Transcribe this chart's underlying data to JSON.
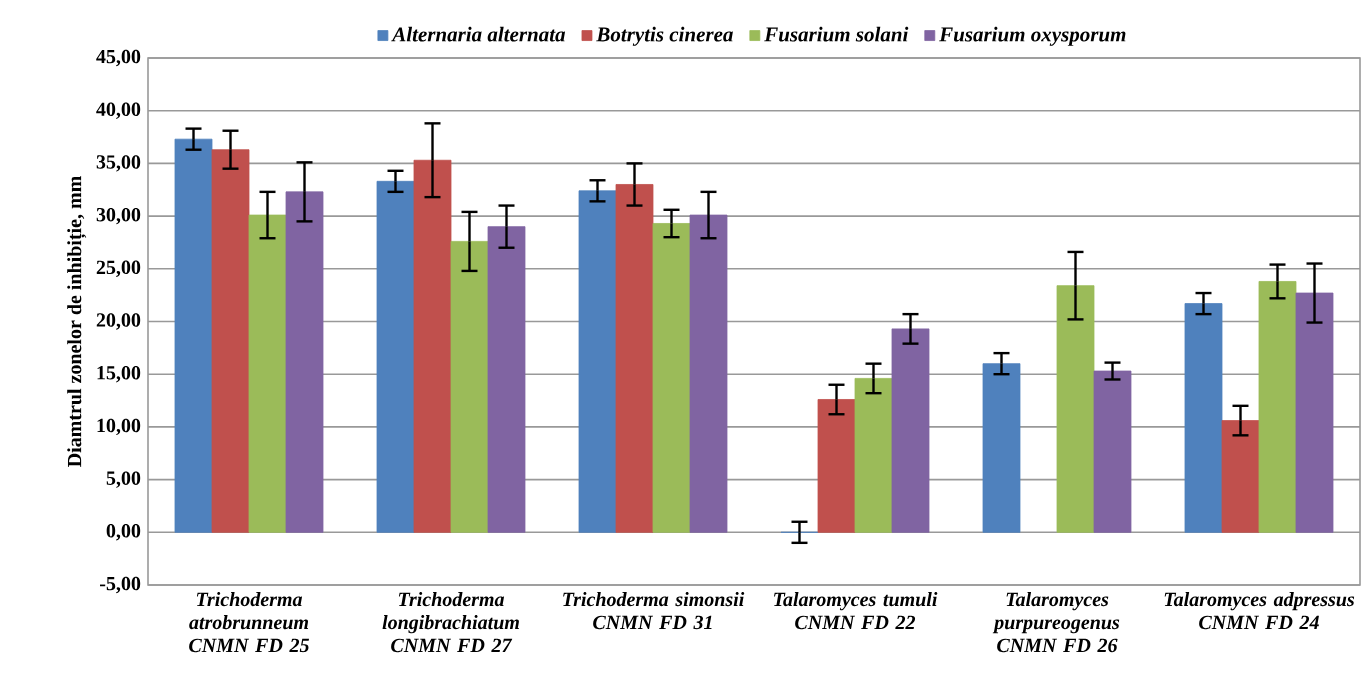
{
  "chart_data": {
    "type": "bar",
    "ylabel": "Diamtrul zonelor de inhibiție, mm",
    "categories": [
      "Trichoderma atrobrunneum CNMN FD 25",
      "Trichoderma longibrachiatum CNMN FD 27",
      "Trichoderma simonsii CNMN FD 31",
      "Talaromyces tumuli CNMN FD 22",
      "Talaromyces purpureogenus CNMN FD 26",
      "Talaromyces adpressus CNMN FD 24"
    ],
    "series": [
      {
        "name": "Alternaria alternata",
        "color": "#4f81bd",
        "values": [
          37.3,
          33.3,
          32.4,
          0,
          16.0,
          21.7
        ],
        "errors": [
          1.0,
          1.0,
          1.0,
          1.0,
          1.0,
          1.0
        ]
      },
      {
        "name": "Botrytis cinerea",
        "color": "#c0504d",
        "values": [
          36.3,
          35.3,
          33.0,
          12.6,
          null,
          10.6
        ],
        "errors": [
          1.8,
          3.5,
          2.0,
          1.4,
          null,
          1.4
        ]
      },
      {
        "name": "Fusarium solani",
        "color": "#9bbb59",
        "values": [
          30.1,
          27.6,
          29.3,
          14.6,
          23.4,
          23.8
        ],
        "errors": [
          2.2,
          2.8,
          1.3,
          1.4,
          3.2,
          1.6
        ]
      },
      {
        "name": "Fusarium oxysporum",
        "color": "#8064a2",
        "values": [
          32.3,
          29.0,
          30.1,
          19.3,
          15.3,
          22.7
        ],
        "errors": [
          2.8,
          2.0,
          2.2,
          1.4,
          0.8,
          2.8
        ]
      }
    ],
    "ylim": [
      -5,
      45
    ],
    "yticks": [
      {
        "value": -5,
        "label": "-5,00"
      },
      {
        "value": 0,
        "label": "0,00"
      },
      {
        "value": 5,
        "label": "5,00"
      },
      {
        "value": 10,
        "label": "10,00"
      },
      {
        "value": 15,
        "label": "15,00"
      },
      {
        "value": 20,
        "label": "20,00"
      },
      {
        "value": 25,
        "label": "25,00"
      },
      {
        "value": 30,
        "label": "30,00"
      },
      {
        "value": 35,
        "label": "35,00"
      },
      {
        "value": 40,
        "label": "40,00"
      },
      {
        "value": 45,
        "label": "45,00"
      }
    ],
    "grid": "y",
    "legend": "top"
  }
}
